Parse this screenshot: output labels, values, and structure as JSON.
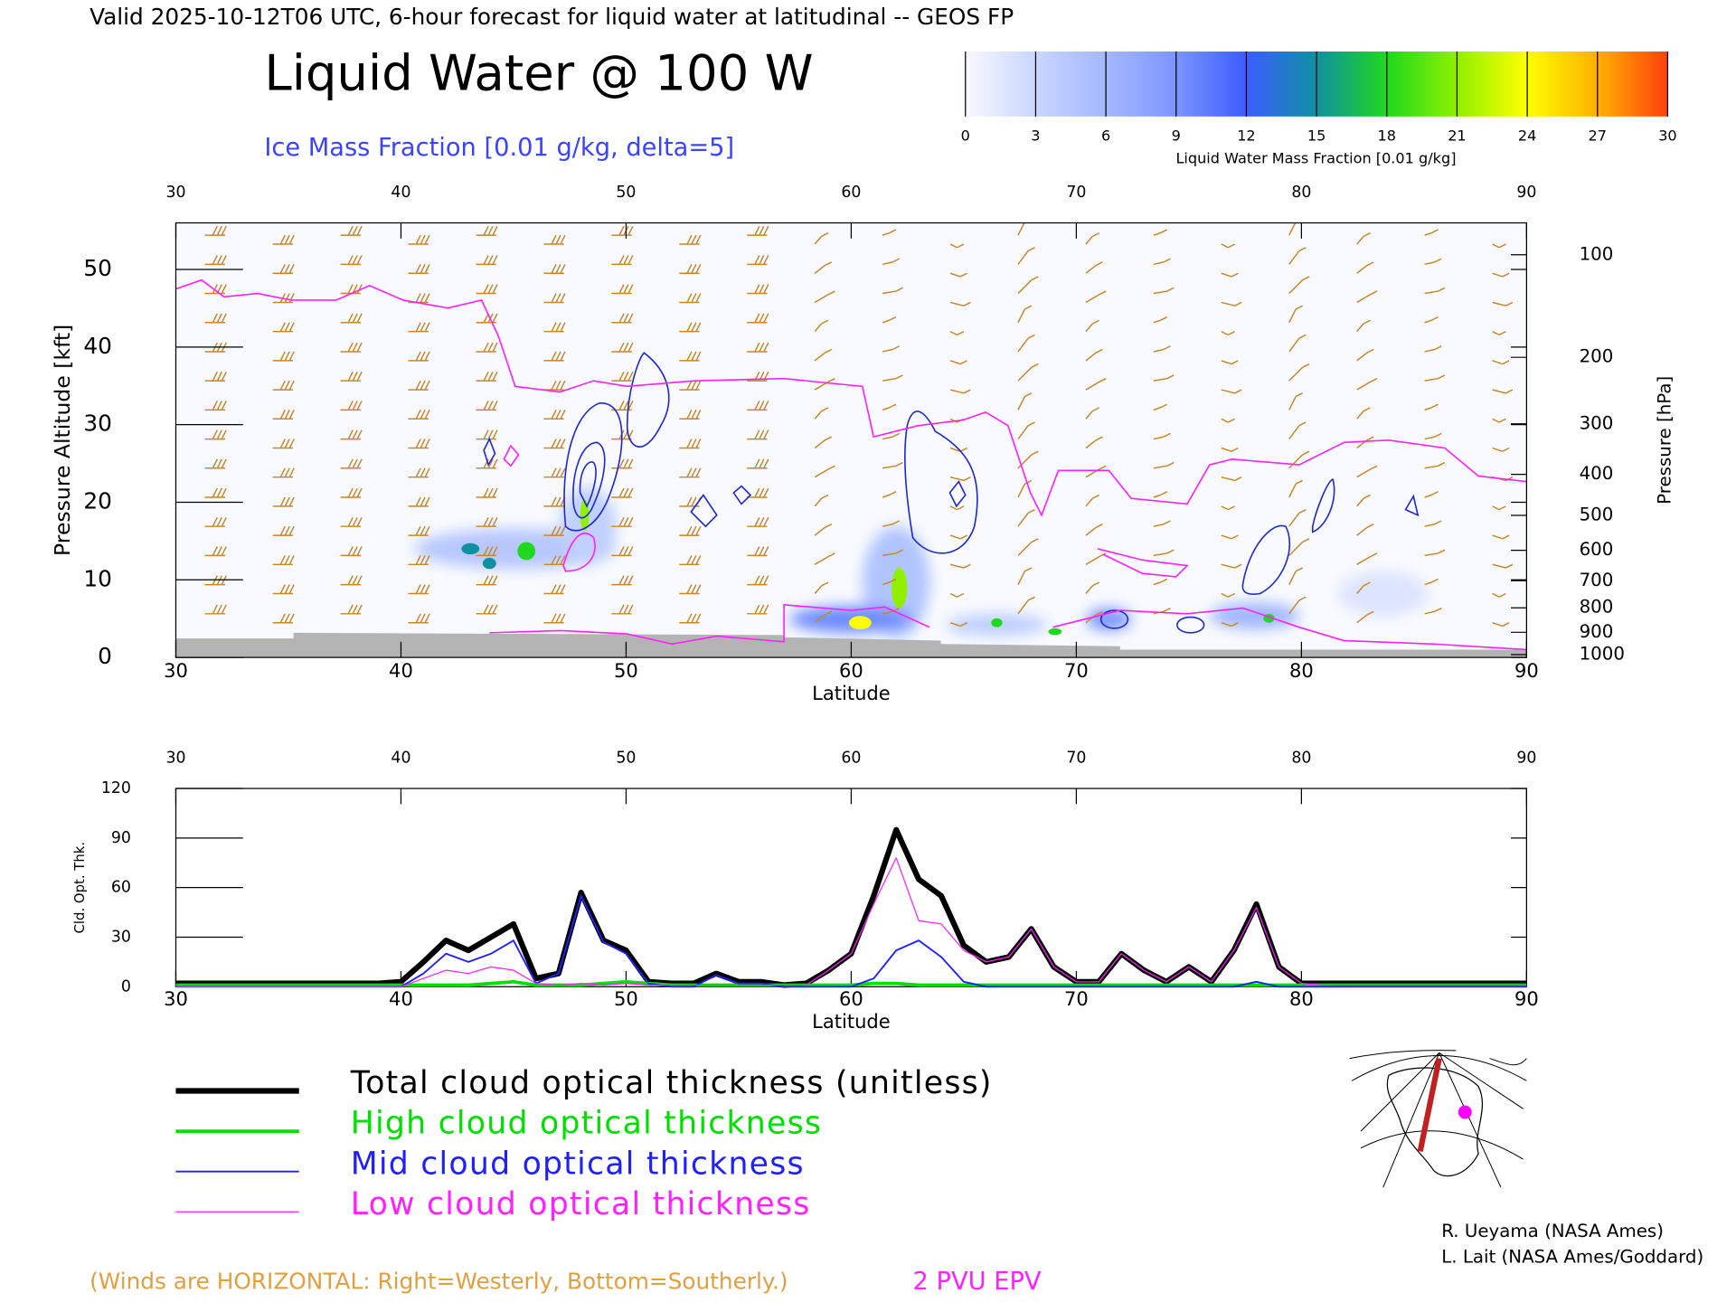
{
  "header": {
    "title": "Valid 2025-10-12T06 UTC, 6-hour forecast for liquid water at latitudinal -- GEOS FP",
    "main_title": "Liquid Water @ 100 W",
    "subtitle": "Ice Mass Fraction [0.01 g/kg, delta=5]"
  },
  "colorbar": {
    "label": "Liquid Water Mass Fraction [0.01 g/kg]",
    "ticks": [
      0,
      3,
      6,
      9,
      12,
      15,
      18,
      21,
      24,
      27,
      30
    ],
    "colors": [
      "#f8f9ff",
      "#c9d6ff",
      "#a3b8ff",
      "#7c95ff",
      "#3c5cff",
      "#1090a0",
      "#20d820",
      "#90f000",
      "#ffff00",
      "#ffb000",
      "#ff4010"
    ]
  },
  "chart_data": [
    {
      "type": "cross-section",
      "xlabel": "Latitude",
      "ylabel": "Pressure Altitude [kft]",
      "y2label": "Pressure [hPa]",
      "xlim": [
        30,
        90
      ],
      "xticks": [
        30,
        40,
        50,
        60,
        70,
        80,
        90
      ],
      "ylim": [
        0,
        56
      ],
      "yticks": [
        0,
        10,
        20,
        30,
        40,
        50
      ],
      "y2lim": [
        1013,
        79
      ],
      "y2ticks": [
        100,
        200,
        300,
        400,
        500,
        600,
        700,
        800,
        900,
        1000
      ]
    },
    {
      "type": "line",
      "xlabel": "Latitude",
      "ylabel": "Cld. Opt. Thk.",
      "xlim": [
        30,
        90
      ],
      "xticks": [
        30,
        40,
        50,
        60,
        70,
        80,
        90
      ],
      "ylim": [
        0,
        120
      ],
      "yticks": [
        0,
        30,
        60,
        90,
        120
      ],
      "x": [
        30,
        31,
        32,
        33,
        34,
        35,
        36,
        37,
        38,
        39,
        40,
        41,
        42,
        43,
        44,
        45,
        46,
        47,
        48,
        49,
        50,
        51,
        52,
        53,
        54,
        55,
        56,
        57,
        58,
        59,
        60,
        61,
        62,
        63,
        64,
        65,
        66,
        67,
        68,
        69,
        70,
        71,
        72,
        73,
        74,
        75,
        76,
        77,
        78,
        79,
        80,
        81,
        82,
        83,
        84,
        85,
        86,
        87,
        88,
        89,
        90
      ],
      "series": [
        {
          "name": "Total cloud optical thickness (unitless)",
          "color": "#000000",
          "width": 5,
          "values": [
            2,
            2,
            2,
            2,
            2,
            2,
            2,
            2,
            2,
            2,
            3,
            15,
            28,
            22,
            30,
            38,
            5,
            8,
            57,
            28,
            22,
            3,
            2,
            2,
            8,
            3,
            3,
            1,
            2,
            10,
            20,
            55,
            95,
            65,
            55,
            25,
            15,
            18,
            35,
            12,
            3,
            3,
            20,
            10,
            3,
            12,
            3,
            22,
            50,
            12,
            2,
            2,
            2,
            2,
            2,
            2,
            2,
            2,
            2,
            2,
            2
          ]
        },
        {
          "name": "High cloud optical thickness",
          "color": "#00e000",
          "width": 3,
          "values": [
            1,
            1,
            1,
            1,
            1,
            1,
            1,
            1,
            1,
            1,
            1,
            1,
            1,
            1,
            2,
            3,
            1,
            1,
            1,
            2,
            3,
            2,
            1,
            1,
            1,
            1,
            1,
            1,
            1,
            1,
            1,
            2,
            2,
            1,
            1,
            1,
            1,
            1,
            1,
            1,
            1,
            1,
            1,
            1,
            1,
            1,
            1,
            1,
            1,
            1,
            1,
            1,
            1,
            1,
            1,
            1,
            1,
            1,
            1,
            1,
            1
          ]
        },
        {
          "name": "Mid cloud optical thickness",
          "color": "#2020ff",
          "width": 1.5,
          "values": [
            0,
            0,
            0,
            0,
            0,
            0,
            0,
            0,
            0,
            0,
            0,
            8,
            20,
            15,
            20,
            28,
            2,
            8,
            55,
            27,
            20,
            2,
            0,
            0,
            7,
            2,
            2,
            0,
            0,
            0,
            0,
            5,
            22,
            28,
            18,
            3,
            0,
            0,
            0,
            0,
            0,
            0,
            0,
            0,
            0,
            0,
            0,
            0,
            3,
            0,
            0,
            0,
            0,
            0,
            0,
            0,
            0,
            0,
            0,
            0,
            0
          ]
        },
        {
          "name": "Low cloud optical thickness",
          "color": "#ff20ff",
          "width": 1,
          "values": [
            0,
            0,
            0,
            0,
            0,
            0,
            0,
            0,
            0,
            0,
            0,
            5,
            10,
            8,
            12,
            10,
            2,
            1,
            2,
            1,
            2,
            1,
            1,
            1,
            1,
            1,
            1,
            1,
            1,
            10,
            20,
            50,
            78,
            40,
            38,
            22,
            15,
            18,
            35,
            12,
            3,
            3,
            20,
            10,
            3,
            12,
            3,
            22,
            48,
            12,
            2,
            1,
            1,
            1,
            1,
            1,
            1,
            1,
            1,
            1,
            1
          ]
        }
      ]
    }
  ],
  "footer": {
    "winds_note": "(Winds are HORIZONTAL: Right=Westerly, Bottom=Southerly.)",
    "epv_label": "2 PVU EPV"
  },
  "credits": [
    "R. Ueyama (NASA Ames)",
    "L. Lait (NASA Ames/Goddard)"
  ]
}
